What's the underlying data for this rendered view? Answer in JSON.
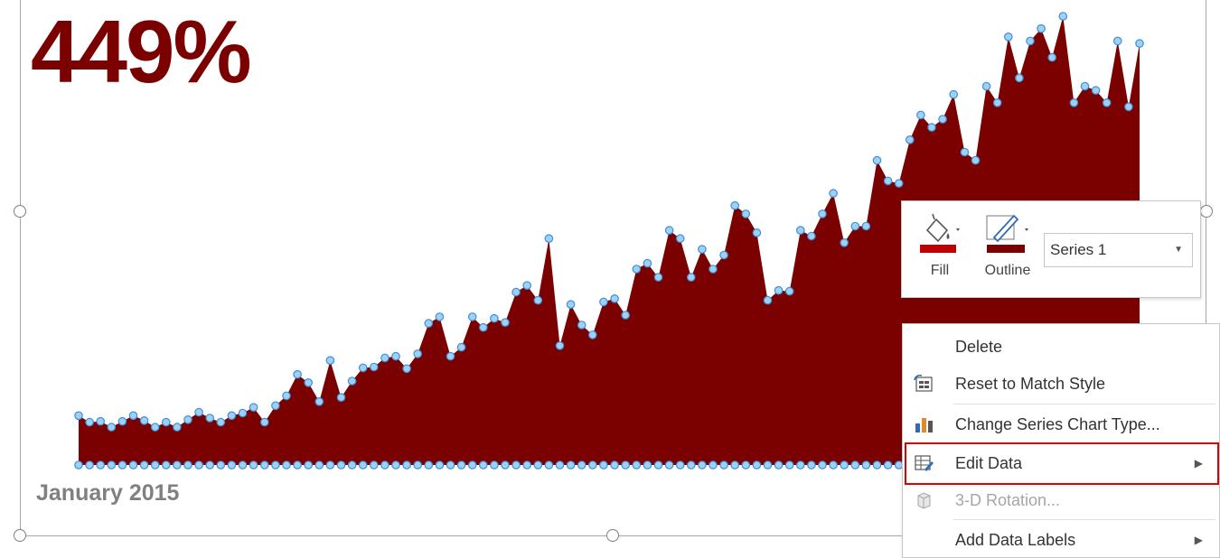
{
  "headline": {
    "kpi": "449%",
    "start_label": "January 2015"
  },
  "colors": {
    "kpi": "#7b0000",
    "area_fill": "#7b0000",
    "marker": "#9fd0f5",
    "marker_stroke": "#3d8fd8",
    "highlight": "#e00000"
  },
  "chart_data": {
    "type": "area",
    "series": [
      {
        "values": [
          60,
          52,
          53,
          46,
          53,
          60,
          54,
          46,
          52,
          46,
          55,
          64,
          57,
          52,
          60,
          63,
          70,
          52,
          72,
          84,
          110,
          100,
          77,
          127,
          82,
          102,
          118,
          119,
          130,
          132,
          117,
          135,
          172,
          180,
          132,
          143,
          180,
          167,
          178,
          173,
          210,
          218,
          200,
          275,
          145,
          195,
          170,
          158,
          198,
          202,
          182,
          238,
          245,
          228,
          285,
          275,
          228,
          262,
          238,
          255,
          315,
          305,
          282,
          200,
          212,
          211,
          285,
          278,
          305,
          330,
          270,
          290,
          290,
          370,
          345,
          342,
          395,
          425,
          410,
          420,
          450,
          380,
          370,
          460,
          440,
          520,
          470,
          515,
          530,
          495,
          545,
          440,
          460,
          455,
          440,
          515,
          435,
          512
        ]
      }
    ],
    "baseline_markers": true,
    "grid": false,
    "legend": "none"
  },
  "mini_toolbar": {
    "fill_label": "Fill",
    "outline_label": "Outline",
    "series_select": "Series 1"
  },
  "context_menu": {
    "items": [
      {
        "label": "Delete",
        "icon": "none",
        "enabled": true
      },
      {
        "label": "Reset to Match Style",
        "icon": "reset-style-icon",
        "enabled": true
      },
      {
        "label": "Change Series Chart Type...",
        "icon": "bar-chart-icon",
        "enabled": true
      },
      {
        "label": "Edit Data",
        "icon": "edit-data-icon",
        "enabled": true,
        "submenu": true
      },
      {
        "label": "3-D Rotation...",
        "icon": "cube-icon",
        "enabled": false
      },
      {
        "label": "Add Data Labels",
        "icon": "none",
        "enabled": true,
        "submenu": true
      }
    ]
  }
}
